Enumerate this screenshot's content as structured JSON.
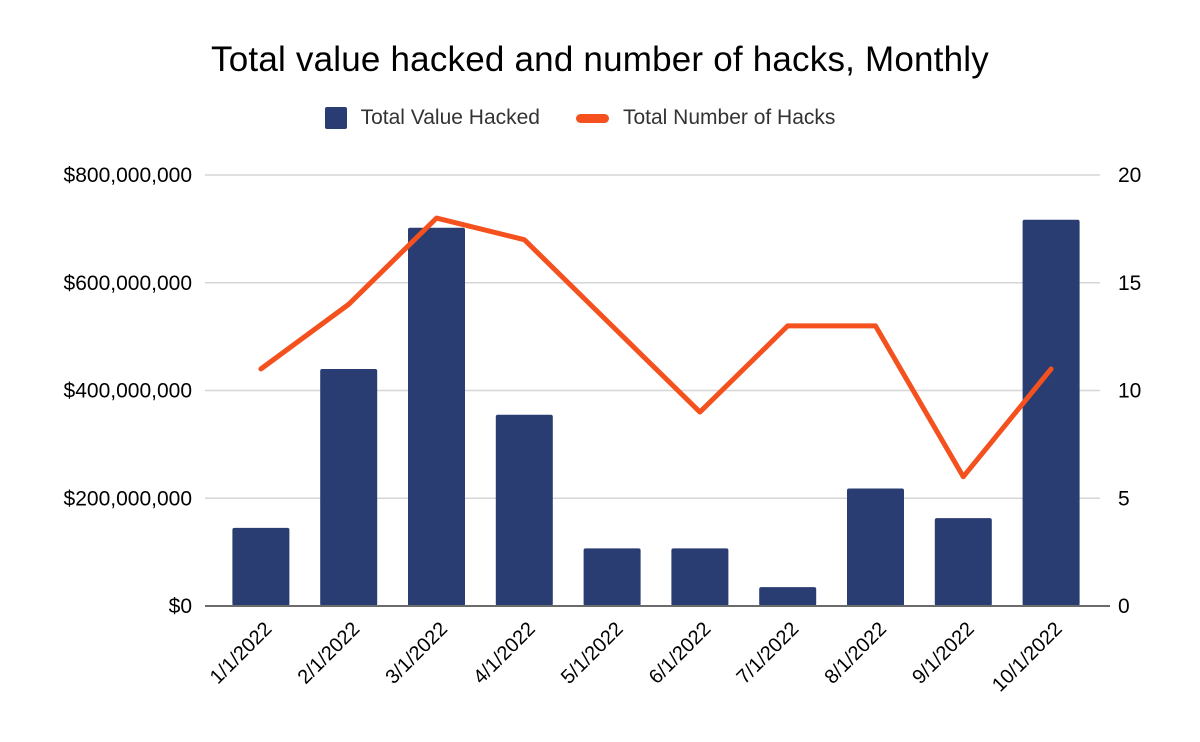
{
  "chart_data": {
    "type": "combo_bar_line",
    "title": "Total value hacked and number of hacks, Monthly",
    "categories": [
      "1/1/2022",
      "2/1/2022",
      "3/1/2022",
      "4/1/2022",
      "5/1/2022",
      "6/1/2022",
      "7/1/2022",
      "8/1/2022",
      "9/1/2022",
      "10/1/2022"
    ],
    "series": [
      {
        "name": "Total Value Hacked",
        "type": "bar",
        "axis": "left",
        "color": "#293d73",
        "values": [
          145000000,
          440000000,
          702000000,
          355000000,
          107000000,
          107000000,
          35000000,
          218000000,
          163000000,
          717000000
        ]
      },
      {
        "name": "Total Number of Hacks",
        "type": "line",
        "axis": "right",
        "color": "#f4511e",
        "values": [
          11,
          14,
          18,
          17,
          13,
          9,
          13,
          13,
          6,
          11
        ]
      }
    ],
    "axes": {
      "left": {
        "min": 0,
        "max": 800000000,
        "ticks": [
          {
            "value": 0,
            "label": "$0"
          },
          {
            "value": 200000000,
            "label": "$200,000,000"
          },
          {
            "value": 400000000,
            "label": "$400,000,000"
          },
          {
            "value": 600000000,
            "label": "$600,000,000"
          },
          {
            "value": 800000000,
            "label": "$800,000,000"
          }
        ]
      },
      "right": {
        "min": 0,
        "max": 20,
        "ticks": [
          {
            "value": 0,
            "label": "0"
          },
          {
            "value": 5,
            "label": "5"
          },
          {
            "value": 10,
            "label": "10"
          },
          {
            "value": 15,
            "label": "15"
          },
          {
            "value": 20,
            "label": "20"
          }
        ]
      }
    },
    "grid": true,
    "legend_position": "top",
    "x_label_rotation_deg": -45
  }
}
